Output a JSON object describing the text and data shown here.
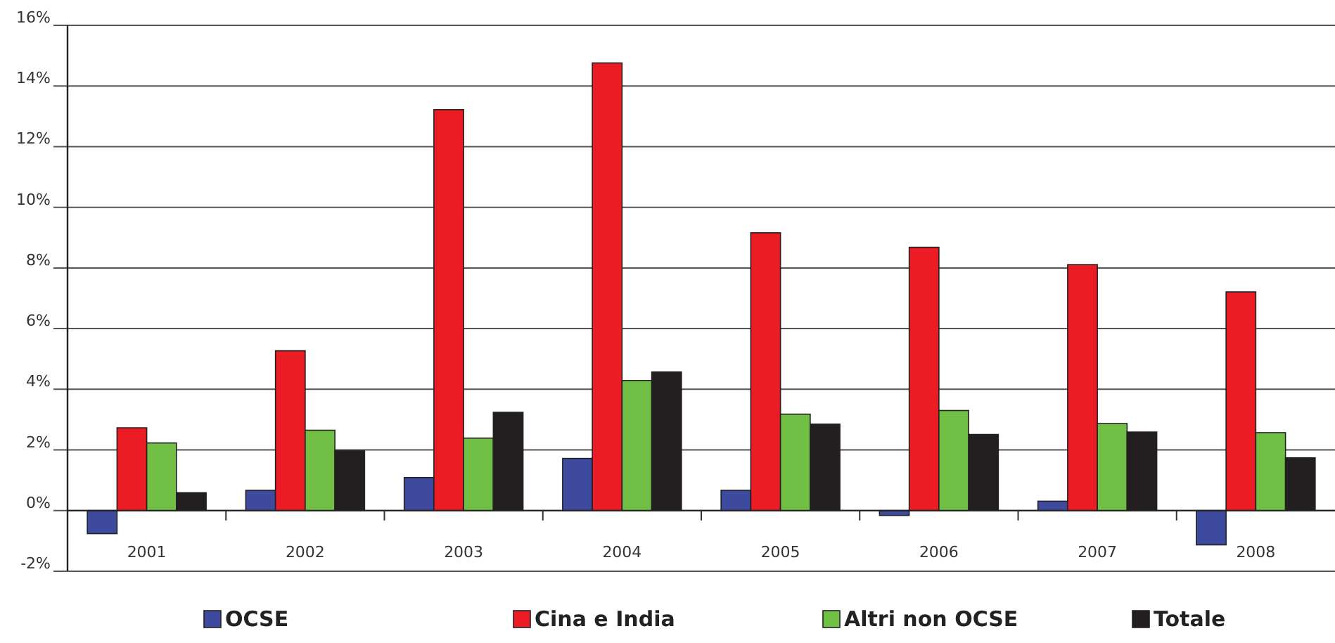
{
  "chart_data": {
    "type": "bar",
    "categories": [
      "2001",
      "2002",
      "2003",
      "2004",
      "2005",
      "2006",
      "2007",
      "2008"
    ],
    "series": [
      {
        "name": "OCSE",
        "color": "#3d4a9e",
        "values": [
          -0.76,
          0.67,
          1.09,
          1.72,
          0.67,
          -0.16,
          0.31,
          -1.13
        ]
      },
      {
        "name": "Cina e India",
        "color": "#ec1c24",
        "values": [
          2.73,
          5.27,
          13.22,
          14.76,
          9.16,
          8.68,
          8.11,
          7.21
        ]
      },
      {
        "name": "Altri non OCSE",
        "color": "#71bf44",
        "values": [
          2.23,
          2.65,
          2.39,
          4.29,
          3.18,
          3.3,
          2.87,
          2.57
        ]
      },
      {
        "name": "Totale",
        "color": "#231f20",
        "values": [
          0.59,
          1.97,
          3.24,
          4.57,
          2.85,
          2.51,
          2.59,
          1.74
        ]
      }
    ],
    "ylim": [
      -2,
      16
    ],
    "yticks": [
      {
        "value": -2,
        "label": "-2%"
      },
      {
        "value": 0,
        "label": "0%"
      },
      {
        "value": 2,
        "label": "2%"
      },
      {
        "value": 4,
        "label": "4%"
      },
      {
        "value": 6,
        "label": "6%"
      },
      {
        "value": 8,
        "label": "8%"
      },
      {
        "value": 10,
        "label": "10%"
      },
      {
        "value": 12,
        "label": "12%"
      },
      {
        "value": 14,
        "label": "14%"
      },
      {
        "value": 16,
        "label": "16%"
      }
    ],
    "grid": "y",
    "legend": "bottom"
  }
}
